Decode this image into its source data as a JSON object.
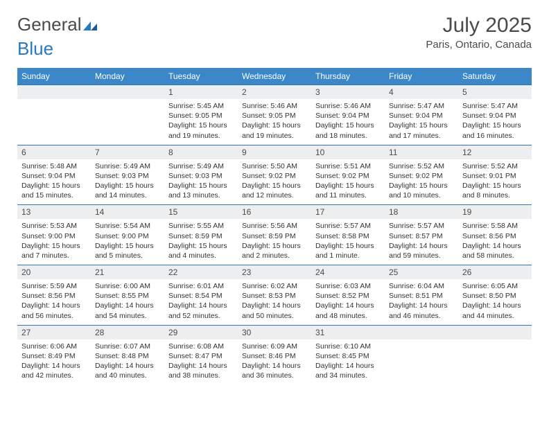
{
  "logo": {
    "text1": "General",
    "text2": "Blue"
  },
  "title": "July 2025",
  "location": "Paris, Ontario, Canada",
  "colors": {
    "header_bg": "#3b87c8",
    "header_text": "#ffffff",
    "daynum_bg": "#eceef0",
    "border_top": "#2878c4",
    "text": "#4a4a4a"
  },
  "weekdays": [
    "Sunday",
    "Monday",
    "Tuesday",
    "Wednesday",
    "Thursday",
    "Friday",
    "Saturday"
  ],
  "weeks": [
    [
      {
        "day": "",
        "lines": [
          "",
          "",
          "",
          ""
        ]
      },
      {
        "day": "",
        "lines": [
          "",
          "",
          "",
          ""
        ]
      },
      {
        "day": "1",
        "lines": [
          "Sunrise: 5:45 AM",
          "Sunset: 9:05 PM",
          "Daylight: 15 hours",
          "and 19 minutes."
        ]
      },
      {
        "day": "2",
        "lines": [
          "Sunrise: 5:46 AM",
          "Sunset: 9:05 PM",
          "Daylight: 15 hours",
          "and 19 minutes."
        ]
      },
      {
        "day": "3",
        "lines": [
          "Sunrise: 5:46 AM",
          "Sunset: 9:04 PM",
          "Daylight: 15 hours",
          "and 18 minutes."
        ]
      },
      {
        "day": "4",
        "lines": [
          "Sunrise: 5:47 AM",
          "Sunset: 9:04 PM",
          "Daylight: 15 hours",
          "and 17 minutes."
        ]
      },
      {
        "day": "5",
        "lines": [
          "Sunrise: 5:47 AM",
          "Sunset: 9:04 PM",
          "Daylight: 15 hours",
          "and 16 minutes."
        ]
      }
    ],
    [
      {
        "day": "6",
        "lines": [
          "Sunrise: 5:48 AM",
          "Sunset: 9:04 PM",
          "Daylight: 15 hours",
          "and 15 minutes."
        ]
      },
      {
        "day": "7",
        "lines": [
          "Sunrise: 5:49 AM",
          "Sunset: 9:03 PM",
          "Daylight: 15 hours",
          "and 14 minutes."
        ]
      },
      {
        "day": "8",
        "lines": [
          "Sunrise: 5:49 AM",
          "Sunset: 9:03 PM",
          "Daylight: 15 hours",
          "and 13 minutes."
        ]
      },
      {
        "day": "9",
        "lines": [
          "Sunrise: 5:50 AM",
          "Sunset: 9:02 PM",
          "Daylight: 15 hours",
          "and 12 minutes."
        ]
      },
      {
        "day": "10",
        "lines": [
          "Sunrise: 5:51 AM",
          "Sunset: 9:02 PM",
          "Daylight: 15 hours",
          "and 11 minutes."
        ]
      },
      {
        "day": "11",
        "lines": [
          "Sunrise: 5:52 AM",
          "Sunset: 9:02 PM",
          "Daylight: 15 hours",
          "and 10 minutes."
        ]
      },
      {
        "day": "12",
        "lines": [
          "Sunrise: 5:52 AM",
          "Sunset: 9:01 PM",
          "Daylight: 15 hours",
          "and 8 minutes."
        ]
      }
    ],
    [
      {
        "day": "13",
        "lines": [
          "Sunrise: 5:53 AM",
          "Sunset: 9:00 PM",
          "Daylight: 15 hours",
          "and 7 minutes."
        ]
      },
      {
        "day": "14",
        "lines": [
          "Sunrise: 5:54 AM",
          "Sunset: 9:00 PM",
          "Daylight: 15 hours",
          "and 5 minutes."
        ]
      },
      {
        "day": "15",
        "lines": [
          "Sunrise: 5:55 AM",
          "Sunset: 8:59 PM",
          "Daylight: 15 hours",
          "and 4 minutes."
        ]
      },
      {
        "day": "16",
        "lines": [
          "Sunrise: 5:56 AM",
          "Sunset: 8:59 PM",
          "Daylight: 15 hours",
          "and 2 minutes."
        ]
      },
      {
        "day": "17",
        "lines": [
          "Sunrise: 5:57 AM",
          "Sunset: 8:58 PM",
          "Daylight: 15 hours",
          "and 1 minute."
        ]
      },
      {
        "day": "18",
        "lines": [
          "Sunrise: 5:57 AM",
          "Sunset: 8:57 PM",
          "Daylight: 14 hours",
          "and 59 minutes."
        ]
      },
      {
        "day": "19",
        "lines": [
          "Sunrise: 5:58 AM",
          "Sunset: 8:56 PM",
          "Daylight: 14 hours",
          "and 58 minutes."
        ]
      }
    ],
    [
      {
        "day": "20",
        "lines": [
          "Sunrise: 5:59 AM",
          "Sunset: 8:56 PM",
          "Daylight: 14 hours",
          "and 56 minutes."
        ]
      },
      {
        "day": "21",
        "lines": [
          "Sunrise: 6:00 AM",
          "Sunset: 8:55 PM",
          "Daylight: 14 hours",
          "and 54 minutes."
        ]
      },
      {
        "day": "22",
        "lines": [
          "Sunrise: 6:01 AM",
          "Sunset: 8:54 PM",
          "Daylight: 14 hours",
          "and 52 minutes."
        ]
      },
      {
        "day": "23",
        "lines": [
          "Sunrise: 6:02 AM",
          "Sunset: 8:53 PM",
          "Daylight: 14 hours",
          "and 50 minutes."
        ]
      },
      {
        "day": "24",
        "lines": [
          "Sunrise: 6:03 AM",
          "Sunset: 8:52 PM",
          "Daylight: 14 hours",
          "and 48 minutes."
        ]
      },
      {
        "day": "25",
        "lines": [
          "Sunrise: 6:04 AM",
          "Sunset: 8:51 PM",
          "Daylight: 14 hours",
          "and 46 minutes."
        ]
      },
      {
        "day": "26",
        "lines": [
          "Sunrise: 6:05 AM",
          "Sunset: 8:50 PM",
          "Daylight: 14 hours",
          "and 44 minutes."
        ]
      }
    ],
    [
      {
        "day": "27",
        "lines": [
          "Sunrise: 6:06 AM",
          "Sunset: 8:49 PM",
          "Daylight: 14 hours",
          "and 42 minutes."
        ]
      },
      {
        "day": "28",
        "lines": [
          "Sunrise: 6:07 AM",
          "Sunset: 8:48 PM",
          "Daylight: 14 hours",
          "and 40 minutes."
        ]
      },
      {
        "day": "29",
        "lines": [
          "Sunrise: 6:08 AM",
          "Sunset: 8:47 PM",
          "Daylight: 14 hours",
          "and 38 minutes."
        ]
      },
      {
        "day": "30",
        "lines": [
          "Sunrise: 6:09 AM",
          "Sunset: 8:46 PM",
          "Daylight: 14 hours",
          "and 36 minutes."
        ]
      },
      {
        "day": "31",
        "lines": [
          "Sunrise: 6:10 AM",
          "Sunset: 8:45 PM",
          "Daylight: 14 hours",
          "and 34 minutes."
        ]
      },
      {
        "day": "",
        "lines": [
          "",
          "",
          "",
          ""
        ]
      },
      {
        "day": "",
        "lines": [
          "",
          "",
          "",
          ""
        ]
      }
    ]
  ]
}
